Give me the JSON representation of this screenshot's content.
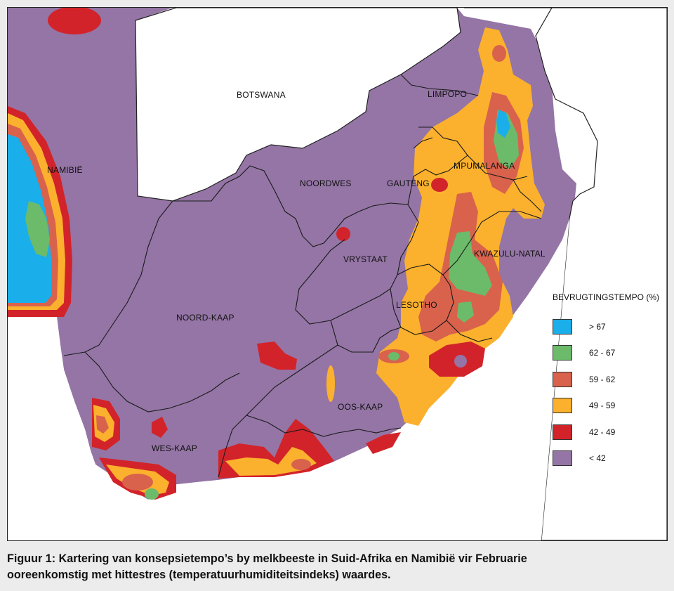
{
  "map": {
    "regions": [
      {
        "id": "botswana",
        "label": "BOTSWANA"
      },
      {
        "id": "namibie",
        "label": "NAMIBIË"
      },
      {
        "id": "limpopo",
        "label": "LIMPOPO"
      },
      {
        "id": "mpumalanga",
        "label": "MPUMALANGA"
      },
      {
        "id": "noordwes",
        "label": "NOORDWES"
      },
      {
        "id": "gauteng",
        "label": "GAUTENG"
      },
      {
        "id": "vrystaat",
        "label": "VRYSTAAT"
      },
      {
        "id": "kwazulu-natal",
        "label": "KWAZULU-NATAL"
      },
      {
        "id": "lesotho",
        "label": "LESOTHO"
      },
      {
        "id": "noord-kaap",
        "label": "NOORD-KAAP"
      },
      {
        "id": "oos-kaap",
        "label": "OOS-KAAP"
      },
      {
        "id": "wes-kaap",
        "label": "WES-KAAP"
      }
    ]
  },
  "legend": {
    "title": "BEVRUGTINGSTEMPO (%)",
    "items": [
      {
        "label": "> 67",
        "color": "#1aaeea"
      },
      {
        "label": "62 - 67",
        "color": "#6cbb6a"
      },
      {
        "label": "59 - 62",
        "color": "#d9624c"
      },
      {
        "label": "49 - 59",
        "color": "#fbb12d"
      },
      {
        "label": "42 - 49",
        "color": "#d2232a"
      },
      {
        "label": "< 42",
        "color": "#9475a5"
      }
    ]
  },
  "caption": {
    "line1": "Figuur 1: Kartering van konsepsietempo’s by melkbeeste in Suid-Afrika en Namibië vir Februarie",
    "line2": "ooreenkomstig met hittestres (temperatuurhumiditeitsindeks) waardes."
  }
}
